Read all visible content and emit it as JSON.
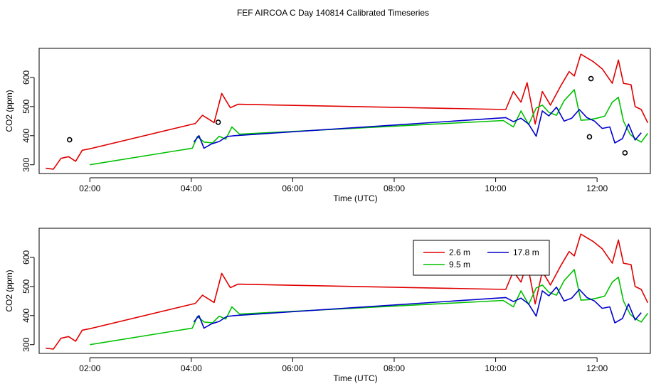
{
  "figure": {
    "title": "FEF AIRCOA C  Day 140814  Calibrated Timeseries"
  },
  "colors": {
    "2.6 m": "#e00000",
    "9.5 m": "#00c000",
    "17.8 m": "#0000cc",
    "markers": "#000000"
  },
  "chart_data": [
    {
      "type": "line",
      "xlabel": "Time (UTC)",
      "ylabel": "CO2 (ppm)",
      "xlim": [
        1.0,
        13.05
      ],
      "ylim": [
        270,
        700
      ],
      "xticks": [
        2,
        4,
        6,
        8,
        10,
        12
      ],
      "xtick_labels": [
        "02:00",
        "04:00",
        "06:00",
        "08:00",
        "10:00",
        "12:00"
      ],
      "yticks": [
        300,
        400,
        500,
        600
      ],
      "ytick_labels": [
        "300",
        "400",
        "500",
        "600"
      ],
      "legend": null,
      "series": [
        {
          "name": "2.6 m",
          "x": [
            1.13,
            1.28,
            1.43,
            1.58,
            1.72,
            1.85,
            2.0,
            4.08,
            4.22,
            4.45,
            4.6,
            4.77,
            4.92,
            10.2,
            10.35,
            10.5,
            10.62,
            10.78,
            10.92,
            11.08,
            11.28,
            11.45,
            11.55,
            11.68,
            11.92,
            12.1,
            12.2,
            12.3,
            12.42,
            12.52,
            12.67,
            12.75,
            12.87,
            13.0
          ],
          "y": [
            288,
            285,
            322,
            328,
            312,
            350,
            355,
            442,
            470,
            445,
            545,
            496,
            508,
            490,
            552,
            515,
            582,
            440,
            552,
            505,
            570,
            620,
            605,
            680,
            655,
            630,
            605,
            580,
            660,
            580,
            575,
            500,
            490,
            444
          ]
        },
        {
          "name": "9.5 m",
          "x": [
            2.0,
            4.02,
            4.12,
            4.25,
            4.42,
            4.55,
            4.68,
            4.8,
            4.95,
            10.15,
            10.35,
            10.5,
            10.65,
            10.8,
            10.92,
            11.05,
            11.2,
            11.35,
            11.55,
            11.68,
            11.85,
            12.0,
            12.15,
            12.3,
            12.42,
            12.52,
            12.65,
            12.75,
            12.87,
            13.0
          ],
          "y": [
            300,
            357,
            397,
            378,
            375,
            398,
            388,
            430,
            405,
            452,
            430,
            485,
            438,
            495,
            505,
            480,
            470,
            520,
            558,
            453,
            455,
            460,
            467,
            515,
            532,
            450,
            405,
            390,
            378,
            408
          ]
        },
        {
          "name": "17.8 m",
          "x": [
            4.05,
            4.15,
            4.25,
            4.4,
            4.55,
            4.7,
            4.85,
            10.2,
            10.35,
            10.5,
            10.65,
            10.8,
            10.92,
            11.05,
            11.2,
            11.35,
            11.5,
            11.65,
            11.8,
            11.95,
            12.1,
            12.25,
            12.35,
            12.5,
            12.62,
            12.75,
            12.87
          ],
          "y": [
            378,
            400,
            357,
            372,
            380,
            397,
            400,
            462,
            448,
            460,
            440,
            398,
            485,
            468,
            498,
            450,
            460,
            490,
            462,
            450,
            425,
            430,
            375,
            390,
            440,
            385,
            410
          ]
        }
      ],
      "markers": {
        "x": [
          1.6,
          4.53,
          11.88,
          11.85,
          12.55
        ],
        "y": [
          386,
          446,
          596,
          396,
          341
        ]
      }
    },
    {
      "type": "line",
      "xlabel": "Time (UTC)",
      "ylabel": "CO2 (ppm)",
      "xlim": [
        1.0,
        13.05
      ],
      "ylim": [
        270,
        700
      ],
      "xticks": [
        2,
        4,
        6,
        8,
        10,
        12
      ],
      "xtick_labels": [
        "02:00",
        "04:00",
        "06:00",
        "08:00",
        "10:00",
        "12:00"
      ],
      "yticks": [
        300,
        400,
        500,
        600
      ],
      "ytick_labels": [
        "300",
        "400",
        "500",
        "600"
      ],
      "legend": "top-right",
      "legend_entries": [
        "2.6 m",
        "9.5 m",
        "17.8 m"
      ],
      "series": [
        {
          "name": "2.6 m",
          "x": [
            1.13,
            1.28,
            1.43,
            1.58,
            1.72,
            1.85,
            2.0,
            4.08,
            4.22,
            4.45,
            4.6,
            4.77,
            4.92,
            10.2,
            10.35,
            10.5,
            10.62,
            10.78,
            10.92,
            11.08,
            11.28,
            11.45,
            11.55,
            11.68,
            11.92,
            12.1,
            12.2,
            12.3,
            12.42,
            12.52,
            12.67,
            12.75,
            12.87,
            13.0
          ],
          "y": [
            288,
            285,
            322,
            328,
            312,
            350,
            355,
            442,
            470,
            445,
            545,
            496,
            508,
            490,
            552,
            515,
            582,
            440,
            552,
            505,
            570,
            620,
            605,
            680,
            655,
            630,
            605,
            580,
            660,
            580,
            575,
            500,
            490,
            444
          ]
        },
        {
          "name": "9.5 m",
          "x": [
            2.0,
            4.02,
            4.12,
            4.25,
            4.42,
            4.55,
            4.68,
            4.8,
            4.95,
            10.15,
            10.35,
            10.5,
            10.65,
            10.8,
            10.92,
            11.05,
            11.2,
            11.35,
            11.55,
            11.68,
            11.85,
            12.0,
            12.15,
            12.3,
            12.42,
            12.52,
            12.65,
            12.75,
            12.87,
            13.0
          ],
          "y": [
            300,
            357,
            397,
            378,
            375,
            398,
            388,
            430,
            405,
            452,
            430,
            485,
            438,
            495,
            505,
            480,
            470,
            520,
            558,
            453,
            455,
            460,
            467,
            515,
            532,
            450,
            405,
            390,
            378,
            408
          ]
        },
        {
          "name": "17.8 m",
          "x": [
            4.05,
            4.15,
            4.25,
            4.4,
            4.55,
            4.7,
            4.85,
            10.2,
            10.35,
            10.5,
            10.65,
            10.8,
            10.92,
            11.05,
            11.2,
            11.35,
            11.5,
            11.65,
            11.8,
            11.95,
            12.1,
            12.25,
            12.35,
            12.5,
            12.62,
            12.75,
            12.87
          ],
          "y": [
            378,
            400,
            357,
            372,
            380,
            397,
            400,
            462,
            448,
            460,
            440,
            398,
            485,
            468,
            498,
            450,
            460,
            490,
            462,
            450,
            425,
            430,
            375,
            390,
            440,
            385,
            410
          ]
        }
      ]
    }
  ]
}
